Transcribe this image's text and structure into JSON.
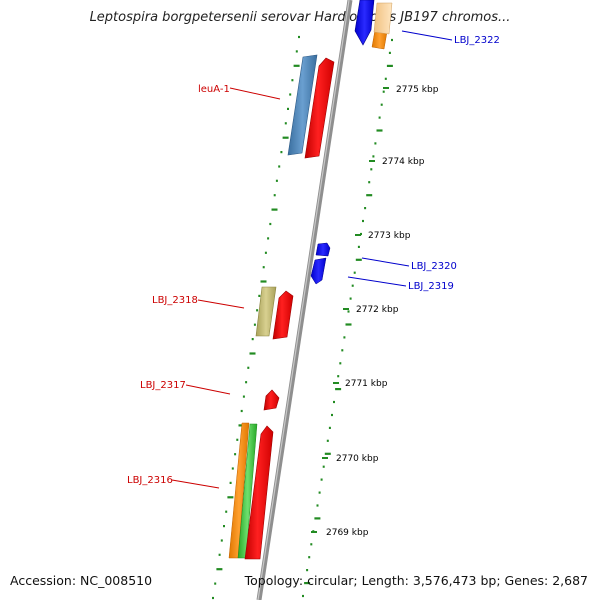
{
  "title": "Leptospira borgpetersenii serovar Hardjo-bovis JB197 chromos...",
  "footer": {
    "accession": "Accession: NC_008510",
    "topology": "Topology: circular; Length: 3,576,473 bp; Genes: 2,687"
  },
  "ticks": [
    {
      "label": "2775 kbp"
    },
    {
      "label": "2774 kbp"
    },
    {
      "label": "2773 kbp"
    },
    {
      "label": "2772 kbp"
    },
    {
      "label": "2771 kbp"
    },
    {
      "label": "2770 kbp"
    },
    {
      "label": "2769 kbp"
    }
  ],
  "genes": {
    "leuA": {
      "label": "leuA-1"
    },
    "lbj2318": {
      "label": "LBJ_2318"
    },
    "lbj2317": {
      "label": "LBJ_2317"
    },
    "lbj2316": {
      "label": "LBJ_2316"
    },
    "lbj2322": {
      "label": "LBJ_2322"
    },
    "lbj2320": {
      "label": "LBJ_2320"
    },
    "lbj2319": {
      "label": "LBJ_2319"
    }
  },
  "colors": {
    "backbone": "#8a8a8a",
    "forward_cds": "#ff0000",
    "reverse_cds": "#0000ff",
    "tick_green": "#228b22",
    "blue_feature": "#4682b4",
    "khaki_feature": "#bdb76b",
    "orange_feature": "#ff8c00",
    "green_feature": "#32cd32",
    "label_red": "#cc0000",
    "label_blue": "#0000cc"
  }
}
